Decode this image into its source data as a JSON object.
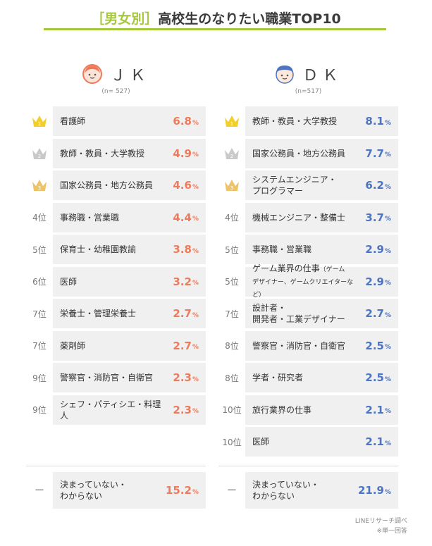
{
  "title": {
    "bracket_open": "［",
    "bracket_label": "男女別",
    "bracket_close": "］",
    "main": "高校生のなりたい職業TOP10"
  },
  "colors": {
    "accent": "#a5c83b",
    "jk": "#ef7a5a",
    "dk": "#4d74c2",
    "gold": "#f2cf2a",
    "silver": "#c9c9c9",
    "bronze": "#eec46a"
  },
  "chart_data": [
    {
      "type": "table",
      "series_label": "ＪＫ",
      "n": "(n= 527)",
      "unit": "%",
      "rows": [
        {
          "rank": "1",
          "rank_icon": "gold-crown-icon",
          "job": "看護師",
          "value": 6.8
        },
        {
          "rank": "2",
          "rank_icon": "silver-crown-icon",
          "job": "教師・教員・大学教授",
          "value": 4.9
        },
        {
          "rank": "3",
          "rank_icon": "bronze-crown-icon",
          "job": "国家公務員・地方公務員",
          "value": 4.6
        },
        {
          "rank": "4位",
          "job": "事務職・営業職",
          "value": 4.4
        },
        {
          "rank": "5位",
          "job": "保育士・幼稚園教諭",
          "value": 3.8
        },
        {
          "rank": "6位",
          "job": "医師",
          "value": 3.2
        },
        {
          "rank": "7位",
          "job": "栄養士・管理栄養士",
          "value": 2.7
        },
        {
          "rank": "7位",
          "job": "薬剤師",
          "value": 2.7
        },
        {
          "rank": "9位",
          "job": "警察官・消防官・自衛官",
          "value": 2.3
        },
        {
          "rank": "9位",
          "job": "シェフ・パティシエ・料理人",
          "value": 2.3
        }
      ],
      "undecided": {
        "rank": "ー",
        "job_line1": "決まっていない・",
        "job_line2": "わからない",
        "value": 15.2
      }
    },
    {
      "type": "table",
      "series_label": "ＤＫ",
      "n": "(n=517)",
      "unit": "%",
      "rows": [
        {
          "rank": "1",
          "rank_icon": "gold-crown-icon",
          "job": "教師・教員・大学教授",
          "value": 8.1
        },
        {
          "rank": "2",
          "rank_icon": "silver-crown-icon",
          "job": "国家公務員・地方公務員",
          "value": 7.7
        },
        {
          "rank": "3",
          "rank_icon": "bronze-crown-icon",
          "job_line1": "システムエンジニア・",
          "job_line2": "プログラマー",
          "value": 6.2
        },
        {
          "rank": "4位",
          "job": "機械エンジニア・整備士",
          "value": 3.7
        },
        {
          "rank": "5位",
          "job": "事務職・営業職",
          "value": 2.9
        },
        {
          "rank": "5位",
          "job_line1": "ゲーム業界の仕事",
          "job_small1": "（ゲーム",
          "job_small2": "デザイナー、ゲームクリエイターなど）",
          "value": 2.9
        },
        {
          "rank": "7位",
          "job_line1": "設計者・",
          "job_line2": "開発者・工業デザイナー",
          "value": 2.7
        },
        {
          "rank": "8位",
          "job": "警察官・消防官・自衛官",
          "value": 2.5
        },
        {
          "rank": "8位",
          "job": "学者・研究者",
          "value": 2.5
        },
        {
          "rank": "10位",
          "job": "旅行業界の仕事",
          "value": 2.1
        },
        {
          "rank": "10位",
          "job": "医師",
          "value": 2.1
        }
      ],
      "undecided": {
        "rank": "ー",
        "job_line1": "決まっていない・",
        "job_line2": "わからない",
        "value": 21.9
      }
    }
  ],
  "footer": {
    "source": "LINEリサーチ調べ",
    "note": "※単一回答"
  }
}
